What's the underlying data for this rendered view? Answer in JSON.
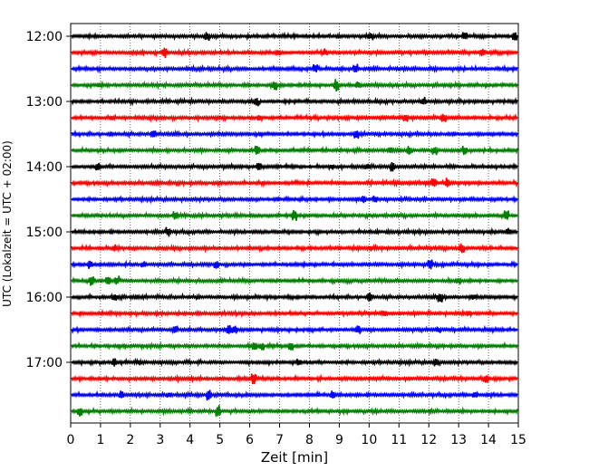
{
  "chart_data": {
    "type": "line",
    "title": "",
    "xlabel": "Zeit  [min]",
    "ylabel": "UTC (Lokalzeit = UTC + 02:00)",
    "xlim": [
      0,
      15
    ],
    "x_ticks": [
      0,
      1,
      2,
      3,
      4,
      5,
      6,
      7,
      8,
      9,
      10,
      11,
      12,
      13,
      14,
      15
    ],
    "x_grid": "dotted vertical lines at each minute",
    "y_ticks": [
      "12:00",
      "13:00",
      "14:00",
      "15:00",
      "16:00",
      "17:00"
    ],
    "trace_interval_minutes": 15,
    "colors_cycle": [
      "#000000",
      "#ff0000",
      "#0000ff",
      "#008000"
    ],
    "series": [
      {
        "start": "12:00",
        "color": "#000000"
      },
      {
        "start": "12:15",
        "color": "#ff0000"
      },
      {
        "start": "12:30",
        "color": "#0000ff"
      },
      {
        "start": "12:45",
        "color": "#008000"
      },
      {
        "start": "13:00",
        "color": "#000000"
      },
      {
        "start": "13:15",
        "color": "#ff0000"
      },
      {
        "start": "13:30",
        "color": "#0000ff"
      },
      {
        "start": "13:45",
        "color": "#008000"
      },
      {
        "start": "14:00",
        "color": "#000000"
      },
      {
        "start": "14:15",
        "color": "#ff0000"
      },
      {
        "start": "14:30",
        "color": "#0000ff"
      },
      {
        "start": "14:45",
        "color": "#008000"
      },
      {
        "start": "15:00",
        "color": "#000000"
      },
      {
        "start": "15:15",
        "color": "#ff0000"
      },
      {
        "start": "15:30",
        "color": "#0000ff"
      },
      {
        "start": "15:45",
        "color": "#008000"
      },
      {
        "start": "16:00",
        "color": "#000000"
      },
      {
        "start": "16:15",
        "color": "#ff0000"
      },
      {
        "start": "16:30",
        "color": "#0000ff"
      },
      {
        "start": "16:45",
        "color": "#008000"
      },
      {
        "start": "17:00",
        "color": "#000000"
      },
      {
        "start": "17:15",
        "color": "#ff0000"
      },
      {
        "start": "17:30",
        "color": "#0000ff"
      },
      {
        "start": "17:45",
        "color": "#008000"
      }
    ]
  }
}
